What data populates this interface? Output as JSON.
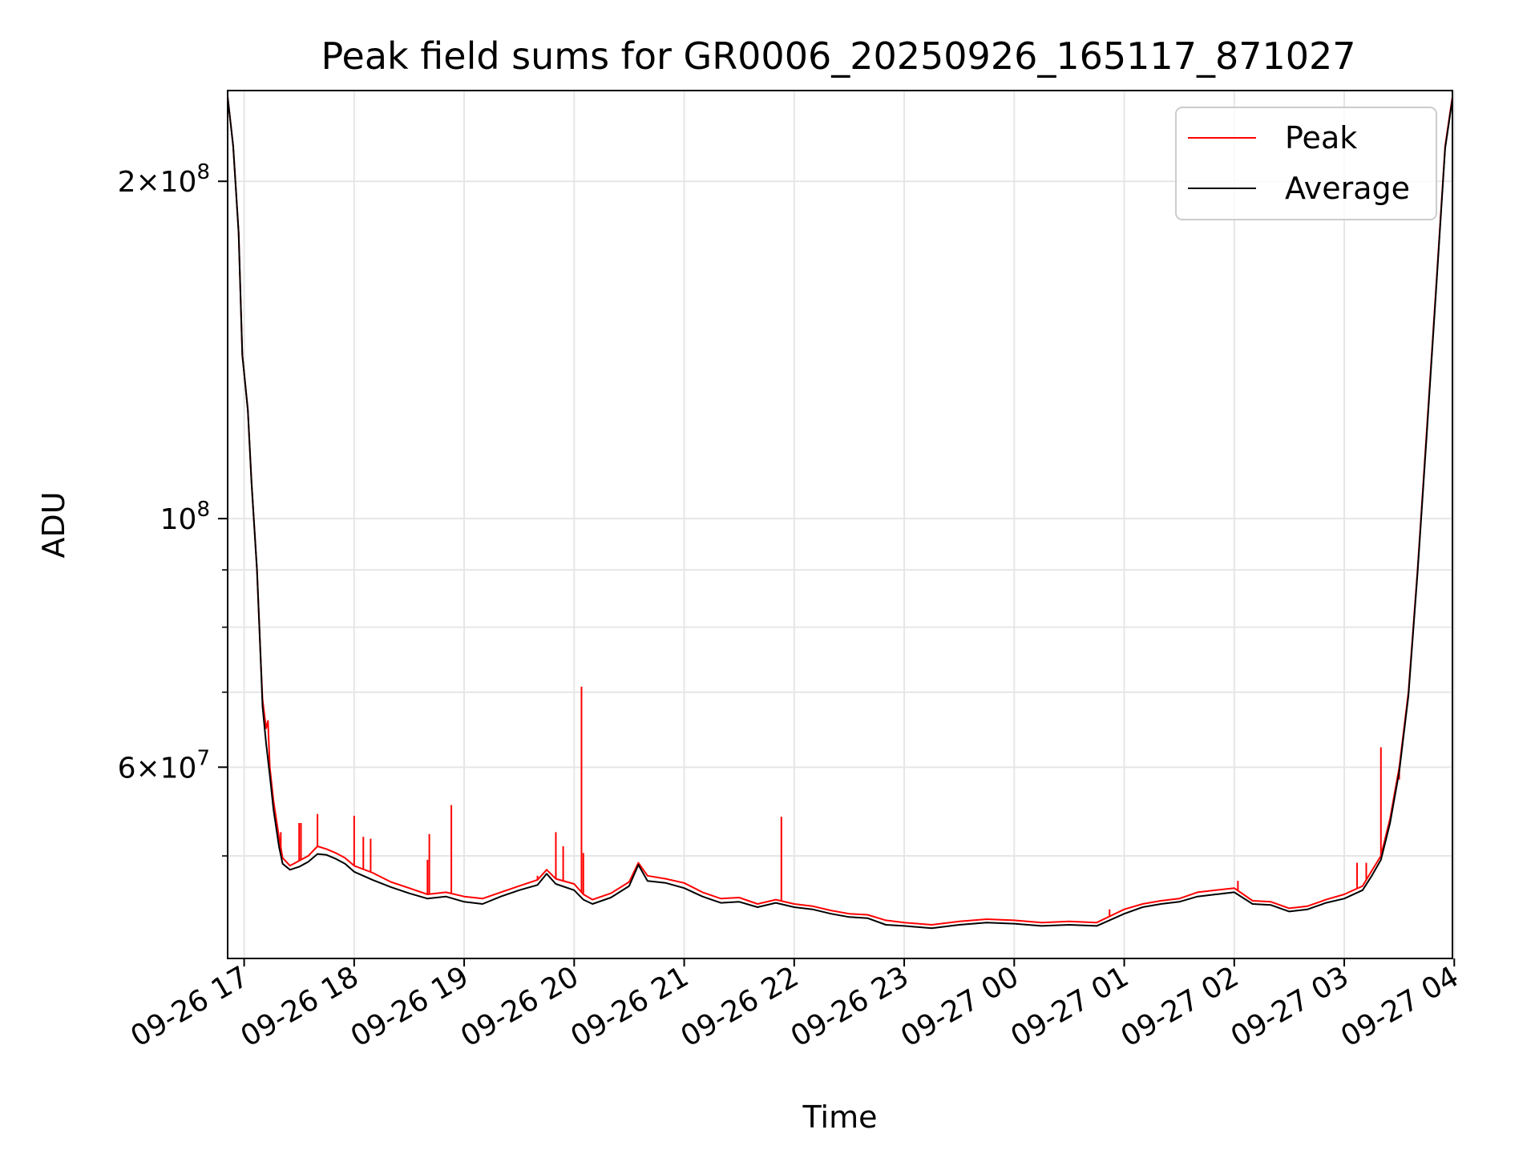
{
  "chart_data": {
    "type": "line",
    "title": "Peak field sums for GR0006_20250926_165117_871027",
    "xlabel": "Time",
    "ylabel": "ADU",
    "yscale": "log",
    "grid": true,
    "legend_position": "top-right",
    "xlim": [
      "2025-09-26 16:51",
      "2025-09-27 03:59"
    ],
    "ylim": [
      40500000,
      241000000
    ],
    "x_ticks": [
      {
        "t": "2025-09-26 17:00",
        "label": "09-26 17"
      },
      {
        "t": "2025-09-26 18:00",
        "label": "09-26 18"
      },
      {
        "t": "2025-09-26 19:00",
        "label": "09-26 19"
      },
      {
        "t": "2025-09-26 20:00",
        "label": "09-26 20"
      },
      {
        "t": "2025-09-26 21:00",
        "label": "09-26 21"
      },
      {
        "t": "2025-09-26 22:00",
        "label": "09-26 22"
      },
      {
        "t": "2025-09-26 23:00",
        "label": "09-26 23"
      },
      {
        "t": "2025-09-27 00:00",
        "label": "09-27 00"
      },
      {
        "t": "2025-09-27 01:00",
        "label": "09-27 01"
      },
      {
        "t": "2025-09-27 02:00",
        "label": "09-27 02"
      },
      {
        "t": "2025-09-27 03:00",
        "label": "09-27 03"
      },
      {
        "t": "2025-09-27 04:00",
        "label": "09-27 04"
      }
    ],
    "y_ticks_major": [
      {
        "value": 100000000,
        "base": "10",
        "exp": "8"
      },
      {
        "value": 200000000,
        "mant": "2",
        "base": "10",
        "exp": "8"
      },
      {
        "value": 60000000,
        "mant": "6",
        "base": "10",
        "exp": "7"
      }
    ],
    "y_ticks_minor": [
      50000000,
      70000000,
      80000000,
      90000000
    ],
    "colors": {
      "peak": "#ff0000",
      "average": "#000000",
      "grid": "#e6e6e6"
    },
    "series": [
      {
        "name": "Peak",
        "color": "#ff0000",
        "points": [
          [
            "2025-09-26 16:51",
            238000000
          ],
          [
            "2025-09-26 16:54",
            215000000
          ],
          [
            "2025-09-26 16:57",
            180000000
          ],
          [
            "2025-09-26 16:59",
            140000000
          ],
          [
            "2025-09-26 17:02",
            125000000
          ],
          [
            "2025-09-26 17:04",
            108000000
          ],
          [
            "2025-09-26 17:07",
            90000000
          ],
          [
            "2025-09-26 17:09",
            75000000
          ],
          [
            "2025-09-26 17:10",
            69000000
          ],
          [
            "2025-09-26 17:12",
            65000000
          ],
          [
            "2025-09-26 17:13",
            66000000
          ],
          [
            "2025-09-26 17:14",
            60000000
          ],
          [
            "2025-09-26 17:16",
            56000000
          ],
          [
            "2025-09-26 17:19",
            52000000
          ],
          [
            "2025-09-26 17:21",
            49800000
          ],
          [
            "2025-09-26 17:25",
            49000000
          ],
          [
            "2025-09-26 17:30",
            49500000
          ],
          [
            "2025-09-26 17:35",
            50000000
          ],
          [
            "2025-09-26 17:40",
            51000000
          ],
          [
            "2025-09-26 17:45",
            50700000
          ],
          [
            "2025-09-26 17:50",
            50300000
          ],
          [
            "2025-09-26 17:55",
            49800000
          ],
          [
            "2025-09-26 18:00",
            49000000
          ],
          [
            "2025-09-26 18:10",
            48300000
          ],
          [
            "2025-09-26 18:20",
            47400000
          ],
          [
            "2025-09-26 18:30",
            46800000
          ],
          [
            "2025-09-26 18:40",
            46200000
          ],
          [
            "2025-09-26 18:50",
            46400000
          ],
          [
            "2025-09-26 19:00",
            46000000
          ],
          [
            "2025-09-26 19:10",
            45800000
          ],
          [
            "2025-09-26 19:20",
            46400000
          ],
          [
            "2025-09-26 19:30",
            47000000
          ],
          [
            "2025-09-26 19:40",
            47600000
          ],
          [
            "2025-09-26 19:45",
            48600000
          ],
          [
            "2025-09-26 19:50",
            47700000
          ],
          [
            "2025-09-26 20:00",
            47200000
          ],
          [
            "2025-09-26 20:05",
            46200000
          ],
          [
            "2025-09-26 20:10",
            45700000
          ],
          [
            "2025-09-26 20:20",
            46300000
          ],
          [
            "2025-09-26 20:30",
            47400000
          ],
          [
            "2025-09-26 20:35",
            49300000
          ],
          [
            "2025-09-26 20:40",
            48000000
          ],
          [
            "2025-09-26 20:50",
            47700000
          ],
          [
            "2025-09-26 21:00",
            47300000
          ],
          [
            "2025-09-26 21:10",
            46400000
          ],
          [
            "2025-09-26 21:20",
            45800000
          ],
          [
            "2025-09-26 21:30",
            45900000
          ],
          [
            "2025-09-26 21:40",
            45300000
          ],
          [
            "2025-09-26 21:50",
            45700000
          ],
          [
            "2025-09-26 22:00",
            45300000
          ],
          [
            "2025-09-26 22:10",
            45100000
          ],
          [
            "2025-09-26 22:20",
            44700000
          ],
          [
            "2025-09-26 22:30",
            44400000
          ],
          [
            "2025-09-26 22:40",
            44300000
          ],
          [
            "2025-09-26 22:50",
            43800000
          ],
          [
            "2025-09-26 23:00",
            43600000
          ],
          [
            "2025-09-26 23:15",
            43400000
          ],
          [
            "2025-09-26 23:30",
            43700000
          ],
          [
            "2025-09-26 23:45",
            43900000
          ],
          [
            "2025-09-27 00:00",
            43800000
          ],
          [
            "2025-09-27 00:15",
            43600000
          ],
          [
            "2025-09-27 00:30",
            43700000
          ],
          [
            "2025-09-27 00:45",
            43600000
          ],
          [
            "2025-09-27 01:00",
            44800000
          ],
          [
            "2025-09-27 01:10",
            45300000
          ],
          [
            "2025-09-27 01:20",
            45600000
          ],
          [
            "2025-09-27 01:30",
            45800000
          ],
          [
            "2025-09-27 01:40",
            46400000
          ],
          [
            "2025-09-27 01:50",
            46600000
          ],
          [
            "2025-09-27 02:00",
            46800000
          ],
          [
            "2025-09-27 02:10",
            45600000
          ],
          [
            "2025-09-27 02:20",
            45500000
          ],
          [
            "2025-09-27 02:30",
            44900000
          ],
          [
            "2025-09-27 02:40",
            45100000
          ],
          [
            "2025-09-27 02:50",
            45700000
          ],
          [
            "2025-09-27 03:00",
            46200000
          ],
          [
            "2025-09-27 03:10",
            47000000
          ],
          [
            "2025-09-27 03:15",
            48500000
          ],
          [
            "2025-09-27 03:20",
            50000000
          ],
          [
            "2025-09-27 03:25",
            54000000
          ],
          [
            "2025-09-27 03:30",
            60000000
          ],
          [
            "2025-09-27 03:35",
            70000000
          ],
          [
            "2025-09-27 03:40",
            90000000
          ],
          [
            "2025-09-27 03:45",
            120000000
          ],
          [
            "2025-09-27 03:50",
            160000000
          ],
          [
            "2025-09-27 03:55",
            215000000
          ],
          [
            "2025-09-27 03:59",
            238000000
          ]
        ],
        "spikes": [
          [
            "2025-09-26 17:10",
            69000000
          ],
          [
            "2025-09-26 17:13",
            66000000
          ],
          [
            "2025-09-26 17:20",
            52500000
          ],
          [
            "2025-09-26 17:30",
            53500000
          ],
          [
            "2025-09-26 17:31",
            53500000
          ],
          [
            "2025-09-26 17:40",
            54500000
          ],
          [
            "2025-09-26 18:00",
            54300000
          ],
          [
            "2025-09-26 18:05",
            52000000
          ],
          [
            "2025-09-26 18:09",
            51800000
          ],
          [
            "2025-09-26 18:40",
            49600000
          ],
          [
            "2025-09-26 18:41",
            52300000
          ],
          [
            "2025-09-26 18:53",
            55500000
          ],
          [
            "2025-09-26 19:40",
            48000000
          ],
          [
            "2025-09-26 19:50",
            52500000
          ],
          [
            "2025-09-26 19:54",
            51000000
          ],
          [
            "2025-09-26 20:04",
            70800000
          ],
          [
            "2025-09-26 20:05",
            50300000
          ],
          [
            "2025-09-26 21:53",
            54200000
          ],
          [
            "2025-09-27 00:52",
            44800000
          ],
          [
            "2025-09-27 02:02",
            47500000
          ],
          [
            "2025-09-27 03:07",
            49300000
          ],
          [
            "2025-09-27 03:12",
            49300000
          ],
          [
            "2025-09-27 03:20",
            62500000
          ],
          [
            "2025-09-27 03:30",
            58500000
          ]
        ]
      },
      {
        "name": "Average",
        "color": "#000000",
        "points": [
          [
            "2025-09-26 16:51",
            238000000
          ],
          [
            "2025-09-26 16:54",
            215000000
          ],
          [
            "2025-09-26 16:57",
            180000000
          ],
          [
            "2025-09-26 16:59",
            140000000
          ],
          [
            "2025-09-26 17:02",
            125000000
          ],
          [
            "2025-09-26 17:04",
            108000000
          ],
          [
            "2025-09-26 17:07",
            90000000
          ],
          [
            "2025-09-26 17:09",
            75000000
          ],
          [
            "2025-09-26 17:10",
            68000000
          ],
          [
            "2025-09-26 17:12",
            63000000
          ],
          [
            "2025-09-26 17:14",
            59000000
          ],
          [
            "2025-09-26 17:16",
            55000000
          ],
          [
            "2025-09-26 17:19",
            51000000
          ],
          [
            "2025-09-26 17:21",
            49200000
          ],
          [
            "2025-09-26 17:25",
            48600000
          ],
          [
            "2025-09-26 17:30",
            48900000
          ],
          [
            "2025-09-26 17:35",
            49400000
          ],
          [
            "2025-09-26 17:40",
            50200000
          ],
          [
            "2025-09-26 17:45",
            50100000
          ],
          [
            "2025-09-26 17:50",
            49700000
          ],
          [
            "2025-09-26 17:55",
            49200000
          ],
          [
            "2025-09-26 18:00",
            48400000
          ],
          [
            "2025-09-26 18:10",
            47600000
          ],
          [
            "2025-09-26 18:20",
            46900000
          ],
          [
            "2025-09-26 18:30",
            46300000
          ],
          [
            "2025-09-26 18:40",
            45800000
          ],
          [
            "2025-09-26 18:50",
            46000000
          ],
          [
            "2025-09-26 19:00",
            45500000
          ],
          [
            "2025-09-26 19:10",
            45300000
          ],
          [
            "2025-09-26 19:20",
            46000000
          ],
          [
            "2025-09-26 19:30",
            46600000
          ],
          [
            "2025-09-26 19:40",
            47100000
          ],
          [
            "2025-09-26 19:45",
            48200000
          ],
          [
            "2025-09-26 19:50",
            47200000
          ],
          [
            "2025-09-26 20:00",
            46600000
          ],
          [
            "2025-09-26 20:05",
            45700000
          ],
          [
            "2025-09-26 20:10",
            45300000
          ],
          [
            "2025-09-26 20:20",
            45900000
          ],
          [
            "2025-09-26 20:30",
            47000000
          ],
          [
            "2025-09-26 20:35",
            49100000
          ],
          [
            "2025-09-26 20:40",
            47500000
          ],
          [
            "2025-09-26 20:50",
            47300000
          ],
          [
            "2025-09-26 21:00",
            46800000
          ],
          [
            "2025-09-26 21:10",
            46000000
          ],
          [
            "2025-09-26 21:20",
            45400000
          ],
          [
            "2025-09-26 21:30",
            45500000
          ],
          [
            "2025-09-26 21:40",
            45000000
          ],
          [
            "2025-09-26 21:50",
            45400000
          ],
          [
            "2025-09-26 22:00",
            45000000
          ],
          [
            "2025-09-26 22:10",
            44800000
          ],
          [
            "2025-09-26 22:20",
            44400000
          ],
          [
            "2025-09-26 22:30",
            44100000
          ],
          [
            "2025-09-26 22:40",
            44000000
          ],
          [
            "2025-09-26 22:50",
            43400000
          ],
          [
            "2025-09-26 23:00",
            43300000
          ],
          [
            "2025-09-26 23:15",
            43100000
          ],
          [
            "2025-09-26 23:30",
            43400000
          ],
          [
            "2025-09-26 23:45",
            43600000
          ],
          [
            "2025-09-27 00:00",
            43500000
          ],
          [
            "2025-09-27 00:15",
            43300000
          ],
          [
            "2025-09-27 00:30",
            43400000
          ],
          [
            "2025-09-27 00:45",
            43300000
          ],
          [
            "2025-09-27 01:00",
            44400000
          ],
          [
            "2025-09-27 01:10",
            45000000
          ],
          [
            "2025-09-27 01:20",
            45300000
          ],
          [
            "2025-09-27 01:30",
            45500000
          ],
          [
            "2025-09-27 01:40",
            46000000
          ],
          [
            "2025-09-27 01:50",
            46200000
          ],
          [
            "2025-09-27 02:00",
            46400000
          ],
          [
            "2025-09-27 02:10",
            45300000
          ],
          [
            "2025-09-27 02:20",
            45200000
          ],
          [
            "2025-09-27 02:30",
            44600000
          ],
          [
            "2025-09-27 02:40",
            44800000
          ],
          [
            "2025-09-27 02:50",
            45400000
          ],
          [
            "2025-09-27 03:00",
            45800000
          ],
          [
            "2025-09-27 03:10",
            46600000
          ],
          [
            "2025-09-27 03:15",
            48000000
          ],
          [
            "2025-09-27 03:20",
            49600000
          ],
          [
            "2025-09-27 03:25",
            53500000
          ],
          [
            "2025-09-27 03:30",
            59500000
          ],
          [
            "2025-09-27 03:35",
            69500000
          ],
          [
            "2025-09-27 03:40",
            89500000
          ],
          [
            "2025-09-27 03:45",
            119000000
          ],
          [
            "2025-09-27 03:50",
            159000000
          ],
          [
            "2025-09-27 03:55",
            214000000
          ],
          [
            "2025-09-27 03:59",
            237000000
          ]
        ]
      }
    ]
  }
}
